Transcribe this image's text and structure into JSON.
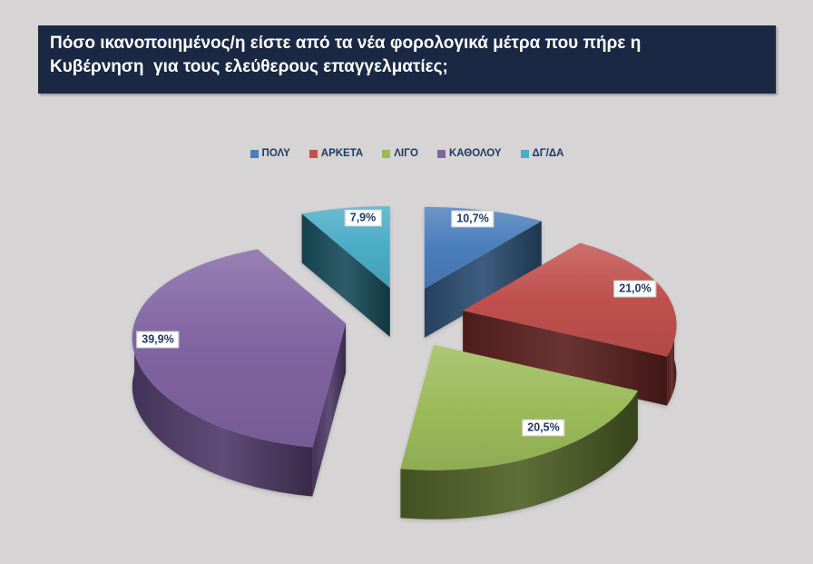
{
  "title": {
    "lines": [
      "Πόσο ικανοποιημένος/η είστε από τα νέα φορολογικά μέτρα που πήρε η",
      "Κυβέρνηση  για τους ελεύθερους επαγγελματίες;"
    ]
  },
  "chart_data": {
    "type": "pie",
    "style": "3d-exploded",
    "unit": "%",
    "direction": "clockwise",
    "start_angle_deg": 0,
    "legend_position": "top",
    "slices": [
      {
        "label": "ΠΟΛΥ",
        "value": 10.7,
        "display": "10,7%",
        "color": "#4a7ebb",
        "side_color": "#2d4f73"
      },
      {
        "label": "ΑΡΚΕΤΑ",
        "value": 21.0,
        "display": "21,0%",
        "color": "#c0504d",
        "side_color": "#5e2220"
      },
      {
        "label": "ΛΙΓΟ",
        "value": 20.5,
        "display": "20,5%",
        "color": "#9bbb59",
        "side_color": "#506328"
      },
      {
        "label": "ΚΑΘΟΛΟΥ",
        "value": 39.9,
        "display": "39,9%",
        "color": "#8064a2",
        "side_color": "#523d6b"
      },
      {
        "label": "ΔΓ/ΔΑ",
        "value": 7.9,
        "display": "7,9%",
        "color": "#4bacc6",
        "side_color": "#1b4f5e"
      }
    ]
  },
  "colors": {
    "background": "#d6d4d4",
    "title_bar": "#1a2844",
    "title_text": "#ffffff",
    "legend_text": "#1f3864",
    "label_text": "#1f3864",
    "label_box_bg": "#ffffff",
    "label_box_border": "#c6c6c6"
  }
}
